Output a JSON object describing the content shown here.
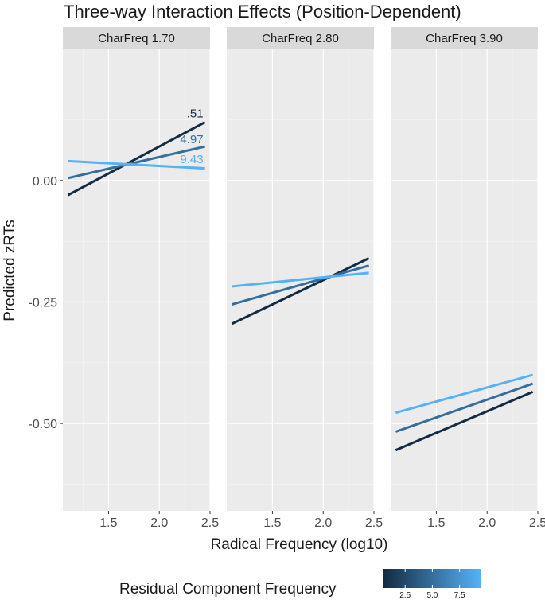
{
  "chart_data": {
    "type": "line",
    "title": "Three-way Interaction Effects (Position-Dependent)",
    "xlabel": "Radical Frequency (log10)",
    "ylabel": "Predicted zRTs",
    "xlim": [
      1.05,
      2.5
    ],
    "ylim": [
      -0.68,
      0.27
    ],
    "xticks": [
      1.5,
      2.0,
      2.5
    ],
    "yticks": [
      0.0,
      -0.25,
      -0.5
    ],
    "ytick_labels": [
      "0.00",
      "-0.25",
      "-0.50"
    ],
    "xtick_labels": [
      "1.5",
      "2.0",
      "2.5"
    ],
    "legend": {
      "title": "Residual Component Frequency",
      "position": "bottom",
      "range": [
        0.51,
        9.43
      ],
      "ticks": [
        2.5,
        5.0,
        7.5
      ],
      "tick_labels": [
        "2.5",
        "5.0",
        "7.5"
      ],
      "color_low": "#132B43",
      "color_high": "#56B1F7"
    },
    "panels": [
      {
        "strip": "CharFreq 1.70",
        "series": [
          {
            "name": ".51",
            "rcf": 0.51,
            "x": [
              1.1,
              2.45
            ],
            "y": [
              -0.03,
              0.12
            ],
            "label": ".51",
            "label_y": 0.13
          },
          {
            "name": "4.97",
            "rcf": 4.97,
            "x": [
              1.1,
              2.45
            ],
            "y": [
              0.005,
              0.07
            ],
            "label": "4.97",
            "label_y": 0.077
          },
          {
            "name": "9.43",
            "rcf": 9.43,
            "x": [
              1.1,
              2.45
            ],
            "y": [
              0.04,
              0.025
            ],
            "label": "9.43",
            "label_y": 0.036
          }
        ]
      },
      {
        "strip": "CharFreq 2.80",
        "series": [
          {
            "name": ".51",
            "rcf": 0.51,
            "x": [
              1.1,
              2.45
            ],
            "y": [
              -0.295,
              -0.16
            ]
          },
          {
            "name": "4.97",
            "rcf": 4.97,
            "x": [
              1.1,
              2.45
            ],
            "y": [
              -0.255,
              -0.175
            ]
          },
          {
            "name": "9.43",
            "rcf": 9.43,
            "x": [
              1.1,
              2.45
            ],
            "y": [
              -0.218,
              -0.19
            ]
          }
        ]
      },
      {
        "strip": "CharFreq 3.90",
        "series": [
          {
            "name": ".51",
            "rcf": 0.51,
            "x": [
              1.1,
              2.45
            ],
            "y": [
              -0.555,
              -0.435
            ]
          },
          {
            "name": "4.97",
            "rcf": 4.97,
            "x": [
              1.1,
              2.45
            ],
            "y": [
              -0.517,
              -0.418
            ]
          },
          {
            "name": "9.43",
            "rcf": 9.43,
            "x": [
              1.1,
              2.45
            ],
            "y": [
              -0.478,
              -0.4
            ]
          }
        ]
      }
    ]
  }
}
